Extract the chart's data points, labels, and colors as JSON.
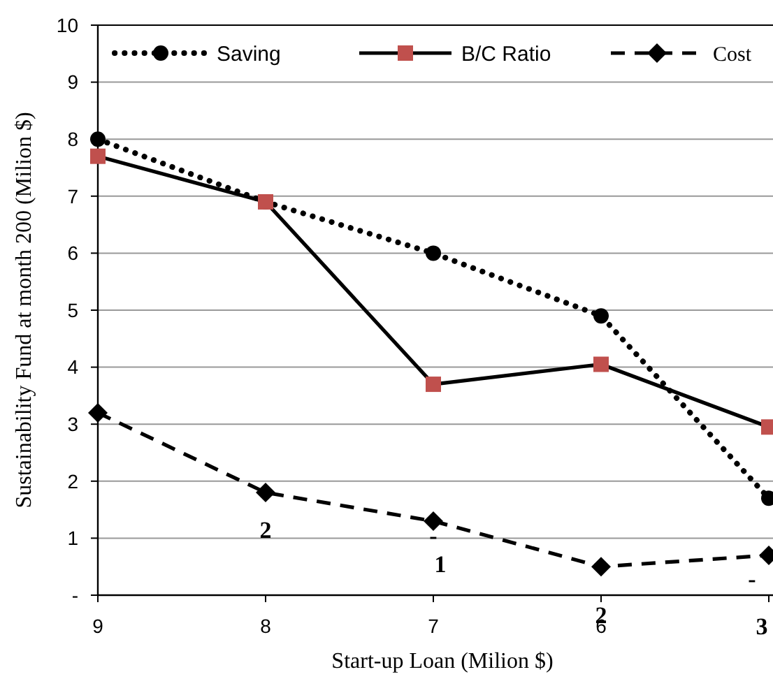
{
  "chart_data": {
    "type": "line",
    "xlabel": "Start-up Loan (Milion $)",
    "ylabel": "Sustainability Fund  at  month 200 (Milion $)",
    "categories": [
      "9",
      "8",
      "7",
      "6",
      null
    ],
    "series": [
      {
        "name": "Saving",
        "color": "#000000",
        "marker": "circle",
        "line_style": "dotted",
        "values": [
          8.0,
          6.9,
          6.0,
          4.9,
          1.7
        ]
      },
      {
        "name": "B/C Ratio",
        "color": "#c0504d",
        "marker": "square",
        "line_style": "solid",
        "values": [
          7.7,
          6.9,
          3.7,
          4.05,
          2.95
        ]
      },
      {
        "name": "Cost",
        "color": "#000000",
        "marker": "diamond",
        "line_style": "dashed",
        "values": [
          3.2,
          1.8,
          1.3,
          0.5,
          0.7
        ]
      }
    ],
    "ylim": [
      0,
      10
    ],
    "yticks": [
      {
        "value": 0,
        "label": "-"
      },
      1,
      2,
      3,
      4,
      5,
      6,
      7,
      8,
      9,
      10
    ],
    "grid": "y",
    "legend": "top",
    "annotations": [
      "2",
      "-",
      "1",
      "2",
      "-",
      "3"
    ]
  }
}
